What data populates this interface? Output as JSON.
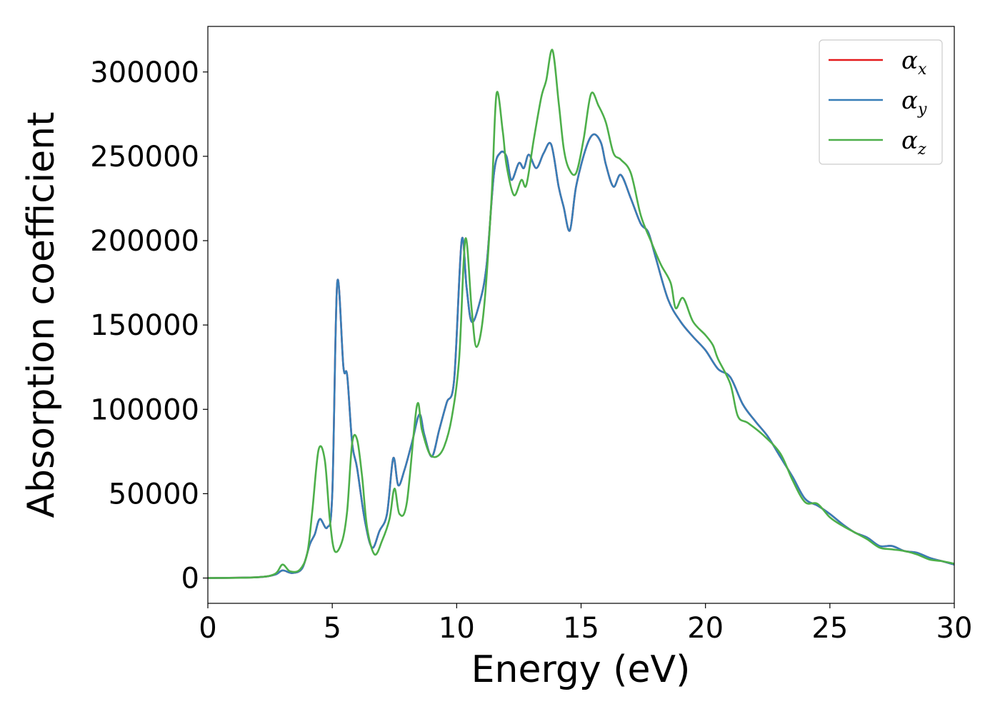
{
  "chart_data": {
    "type": "line",
    "title": "",
    "xlabel": "Energy (eV)",
    "ylabel": "Absorption coefficient",
    "xlim": [
      0,
      30
    ],
    "ylim": [
      -15000,
      327000
    ],
    "xticks": [
      0,
      5,
      10,
      15,
      20,
      25,
      30
    ],
    "xtick_labels": [
      "0",
      "5",
      "10",
      "15",
      "20",
      "25",
      "30"
    ],
    "yticks": [
      0,
      50000,
      100000,
      150000,
      200000,
      250000,
      300000
    ],
    "ytick_labels": [
      "0",
      "50000",
      "100000",
      "150000",
      "200000",
      "250000",
      "300000"
    ],
    "grid": false,
    "legend_position": "top-right",
    "series": [
      {
        "name": "x",
        "color": "#e41a1c",
        "points": [
          [
            0,
            0
          ],
          [
            2,
            500
          ],
          [
            2.7,
            2000
          ],
          [
            3,
            4500
          ],
          [
            3.4,
            3000
          ],
          [
            3.8,
            6000
          ],
          [
            4.1,
            20000
          ],
          [
            4.3,
            26000
          ],
          [
            4.5,
            35000
          ],
          [
            4.8,
            30000
          ],
          [
            5.0,
            50000
          ],
          [
            5.2,
            175000
          ],
          [
            5.45,
            125000
          ],
          [
            5.6,
            120000
          ],
          [
            5.8,
            80000
          ],
          [
            6.0,
            65000
          ],
          [
            6.3,
            35000
          ],
          [
            6.6,
            18000
          ],
          [
            6.9,
            28000
          ],
          [
            7.2,
            38000
          ],
          [
            7.45,
            71000
          ],
          [
            7.65,
            55000
          ],
          [
            7.9,
            64000
          ],
          [
            8.2,
            80000
          ],
          [
            8.5,
            97000
          ],
          [
            8.7,
            85000
          ],
          [
            9.0,
            72000
          ],
          [
            9.3,
            88000
          ],
          [
            9.6,
            104000
          ],
          [
            9.9,
            118000
          ],
          [
            10.2,
            200000
          ],
          [
            10.4,
            172000
          ],
          [
            10.6,
            152000
          ],
          [
            10.9,
            162000
          ],
          [
            11.2,
            185000
          ],
          [
            11.5,
            240000
          ],
          [
            11.75,
            252000
          ],
          [
            12.0,
            250000
          ],
          [
            12.2,
            236000
          ],
          [
            12.5,
            246000
          ],
          [
            12.7,
            243000
          ],
          [
            12.9,
            251000
          ],
          [
            13.2,
            243000
          ],
          [
            13.5,
            252000
          ],
          [
            13.8,
            257000
          ],
          [
            14.1,
            232000
          ],
          [
            14.3,
            220000
          ],
          [
            14.55,
            206000
          ],
          [
            14.8,
            232000
          ],
          [
            15.2,
            255000
          ],
          [
            15.5,
            263000
          ],
          [
            15.8,
            258000
          ],
          [
            16.0,
            245000
          ],
          [
            16.3,
            232000
          ],
          [
            16.6,
            239000
          ],
          [
            17.0,
            225000
          ],
          [
            17.4,
            210000
          ],
          [
            17.7,
            205000
          ],
          [
            18.0,
            190000
          ],
          [
            18.5,
            165000
          ],
          [
            19.0,
            152000
          ],
          [
            19.5,
            143000
          ],
          [
            20.0,
            135000
          ],
          [
            20.5,
            124000
          ],
          [
            21.0,
            119000
          ],
          [
            21.5,
            103000
          ],
          [
            22.0,
            93000
          ],
          [
            22.5,
            84000
          ],
          [
            23.0,
            72000
          ],
          [
            23.5,
            60000
          ],
          [
            24.0,
            47000
          ],
          [
            24.5,
            43000
          ],
          [
            25.0,
            38000
          ],
          [
            25.5,
            32000
          ],
          [
            26.0,
            27000
          ],
          [
            26.5,
            24000
          ],
          [
            27.0,
            19000
          ],
          [
            27.5,
            19000
          ],
          [
            28.0,
            16000
          ],
          [
            28.5,
            15000
          ],
          [
            29.0,
            12000
          ],
          [
            29.5,
            10000
          ],
          [
            30,
            8000
          ]
        ]
      },
      {
        "name": "y",
        "color": "#377eb8",
        "points": [
          [
            0,
            0
          ],
          [
            2,
            500
          ],
          [
            2.7,
            2000
          ],
          [
            3,
            4500
          ],
          [
            3.4,
            3000
          ],
          [
            3.8,
            6000
          ],
          [
            4.1,
            20000
          ],
          [
            4.3,
            26000
          ],
          [
            4.5,
            35000
          ],
          [
            4.8,
            30000
          ],
          [
            5.0,
            50000
          ],
          [
            5.2,
            175000
          ],
          [
            5.45,
            125000
          ],
          [
            5.6,
            120000
          ],
          [
            5.8,
            80000
          ],
          [
            6.0,
            65000
          ],
          [
            6.3,
            35000
          ],
          [
            6.6,
            18000
          ],
          [
            6.9,
            28000
          ],
          [
            7.2,
            38000
          ],
          [
            7.45,
            71000
          ],
          [
            7.65,
            55000
          ],
          [
            7.9,
            64000
          ],
          [
            8.2,
            80000
          ],
          [
            8.5,
            97000
          ],
          [
            8.7,
            85000
          ],
          [
            9.0,
            72000
          ],
          [
            9.3,
            88000
          ],
          [
            9.6,
            104000
          ],
          [
            9.9,
            118000
          ],
          [
            10.2,
            200000
          ],
          [
            10.4,
            172000
          ],
          [
            10.6,
            152000
          ],
          [
            10.9,
            162000
          ],
          [
            11.2,
            185000
          ],
          [
            11.5,
            240000
          ],
          [
            11.75,
            252000
          ],
          [
            12.0,
            250000
          ],
          [
            12.2,
            236000
          ],
          [
            12.5,
            246000
          ],
          [
            12.7,
            243000
          ],
          [
            12.9,
            251000
          ],
          [
            13.2,
            243000
          ],
          [
            13.5,
            252000
          ],
          [
            13.8,
            257000
          ],
          [
            14.1,
            232000
          ],
          [
            14.3,
            220000
          ],
          [
            14.55,
            206000
          ],
          [
            14.8,
            232000
          ],
          [
            15.2,
            255000
          ],
          [
            15.5,
            263000
          ],
          [
            15.8,
            258000
          ],
          [
            16.0,
            245000
          ],
          [
            16.3,
            232000
          ],
          [
            16.6,
            239000
          ],
          [
            17.0,
            225000
          ],
          [
            17.4,
            210000
          ],
          [
            17.7,
            205000
          ],
          [
            18.0,
            190000
          ],
          [
            18.5,
            165000
          ],
          [
            19.0,
            152000
          ],
          [
            19.5,
            143000
          ],
          [
            20.0,
            135000
          ],
          [
            20.5,
            124000
          ],
          [
            21.0,
            119000
          ],
          [
            21.5,
            103000
          ],
          [
            22.0,
            93000
          ],
          [
            22.5,
            84000
          ],
          [
            23.0,
            72000
          ],
          [
            23.5,
            60000
          ],
          [
            24.0,
            47000
          ],
          [
            24.5,
            43000
          ],
          [
            25.0,
            38000
          ],
          [
            25.5,
            32000
          ],
          [
            26.0,
            27000
          ],
          [
            26.5,
            24000
          ],
          [
            27.0,
            19000
          ],
          [
            27.5,
            19000
          ],
          [
            28.0,
            16000
          ],
          [
            28.5,
            15000
          ],
          [
            29.0,
            12000
          ],
          [
            29.5,
            10000
          ],
          [
            30,
            8000
          ]
        ]
      },
      {
        "name": "z",
        "color": "#4daf4a",
        "points": [
          [
            0,
            0
          ],
          [
            2,
            500
          ],
          [
            2.7,
            2500
          ],
          [
            3,
            8000
          ],
          [
            3.3,
            4000
          ],
          [
            3.7,
            5000
          ],
          [
            4.0,
            15000
          ],
          [
            4.2,
            40000
          ],
          [
            4.45,
            76000
          ],
          [
            4.7,
            70000
          ],
          [
            4.9,
            35000
          ],
          [
            5.1,
            16000
          ],
          [
            5.4,
            22000
          ],
          [
            5.6,
            40000
          ],
          [
            5.8,
            80000
          ],
          [
            6.0,
            82000
          ],
          [
            6.2,
            60000
          ],
          [
            6.4,
            30000
          ],
          [
            6.7,
            14000
          ],
          [
            7.0,
            22000
          ],
          [
            7.3,
            35000
          ],
          [
            7.5,
            53000
          ],
          [
            7.7,
            38000
          ],
          [
            8.0,
            45000
          ],
          [
            8.4,
            102000
          ],
          [
            8.6,
            88000
          ],
          [
            8.9,
            74000
          ],
          [
            9.2,
            72000
          ],
          [
            9.5,
            78000
          ],
          [
            9.8,
            95000
          ],
          [
            10.1,
            130000
          ],
          [
            10.35,
            201000
          ],
          [
            10.6,
            160000
          ],
          [
            10.8,
            137000
          ],
          [
            11.1,
            160000
          ],
          [
            11.4,
            225000
          ],
          [
            11.6,
            287000
          ],
          [
            11.85,
            265000
          ],
          [
            12.0,
            245000
          ],
          [
            12.3,
            227000
          ],
          [
            12.6,
            236000
          ],
          [
            12.8,
            233000
          ],
          [
            13.1,
            260000
          ],
          [
            13.4,
            285000
          ],
          [
            13.6,
            295000
          ],
          [
            13.85,
            313000
          ],
          [
            14.1,
            282000
          ],
          [
            14.3,
            255000
          ],
          [
            14.5,
            243000
          ],
          [
            14.8,
            240000
          ],
          [
            15.1,
            260000
          ],
          [
            15.4,
            287000
          ],
          [
            15.7,
            280000
          ],
          [
            16.0,
            270000
          ],
          [
            16.3,
            252000
          ],
          [
            16.6,
            248000
          ],
          [
            17.0,
            240000
          ],
          [
            17.4,
            215000
          ],
          [
            17.8,
            200000
          ],
          [
            18.2,
            186000
          ],
          [
            18.6,
            175000
          ],
          [
            18.8,
            160000
          ],
          [
            19.1,
            166000
          ],
          [
            19.5,
            152000
          ],
          [
            20.0,
            144000
          ],
          [
            20.3,
            138000
          ],
          [
            20.5,
            130000
          ],
          [
            21.0,
            115000
          ],
          [
            21.3,
            96000
          ],
          [
            21.7,
            92000
          ],
          [
            22.3,
            85000
          ],
          [
            23.0,
            74000
          ],
          [
            23.5,
            58000
          ],
          [
            24.0,
            45000
          ],
          [
            24.5,
            44000
          ],
          [
            25.0,
            36000
          ],
          [
            25.5,
            31000
          ],
          [
            26.0,
            27000
          ],
          [
            26.5,
            23000
          ],
          [
            27.0,
            18000
          ],
          [
            27.5,
            17000
          ],
          [
            28.0,
            16000
          ],
          [
            28.5,
            14000
          ],
          [
            29.0,
            11000
          ],
          [
            29.5,
            10000
          ],
          [
            30,
            8500
          ]
        ]
      }
    ]
  },
  "legend": {
    "symbol": "α",
    "items": [
      {
        "sub": "x",
        "color": "#e41a1c"
      },
      {
        "sub": "y",
        "color": "#377eb8"
      },
      {
        "sub": "z",
        "color": "#4daf4a"
      }
    ]
  }
}
